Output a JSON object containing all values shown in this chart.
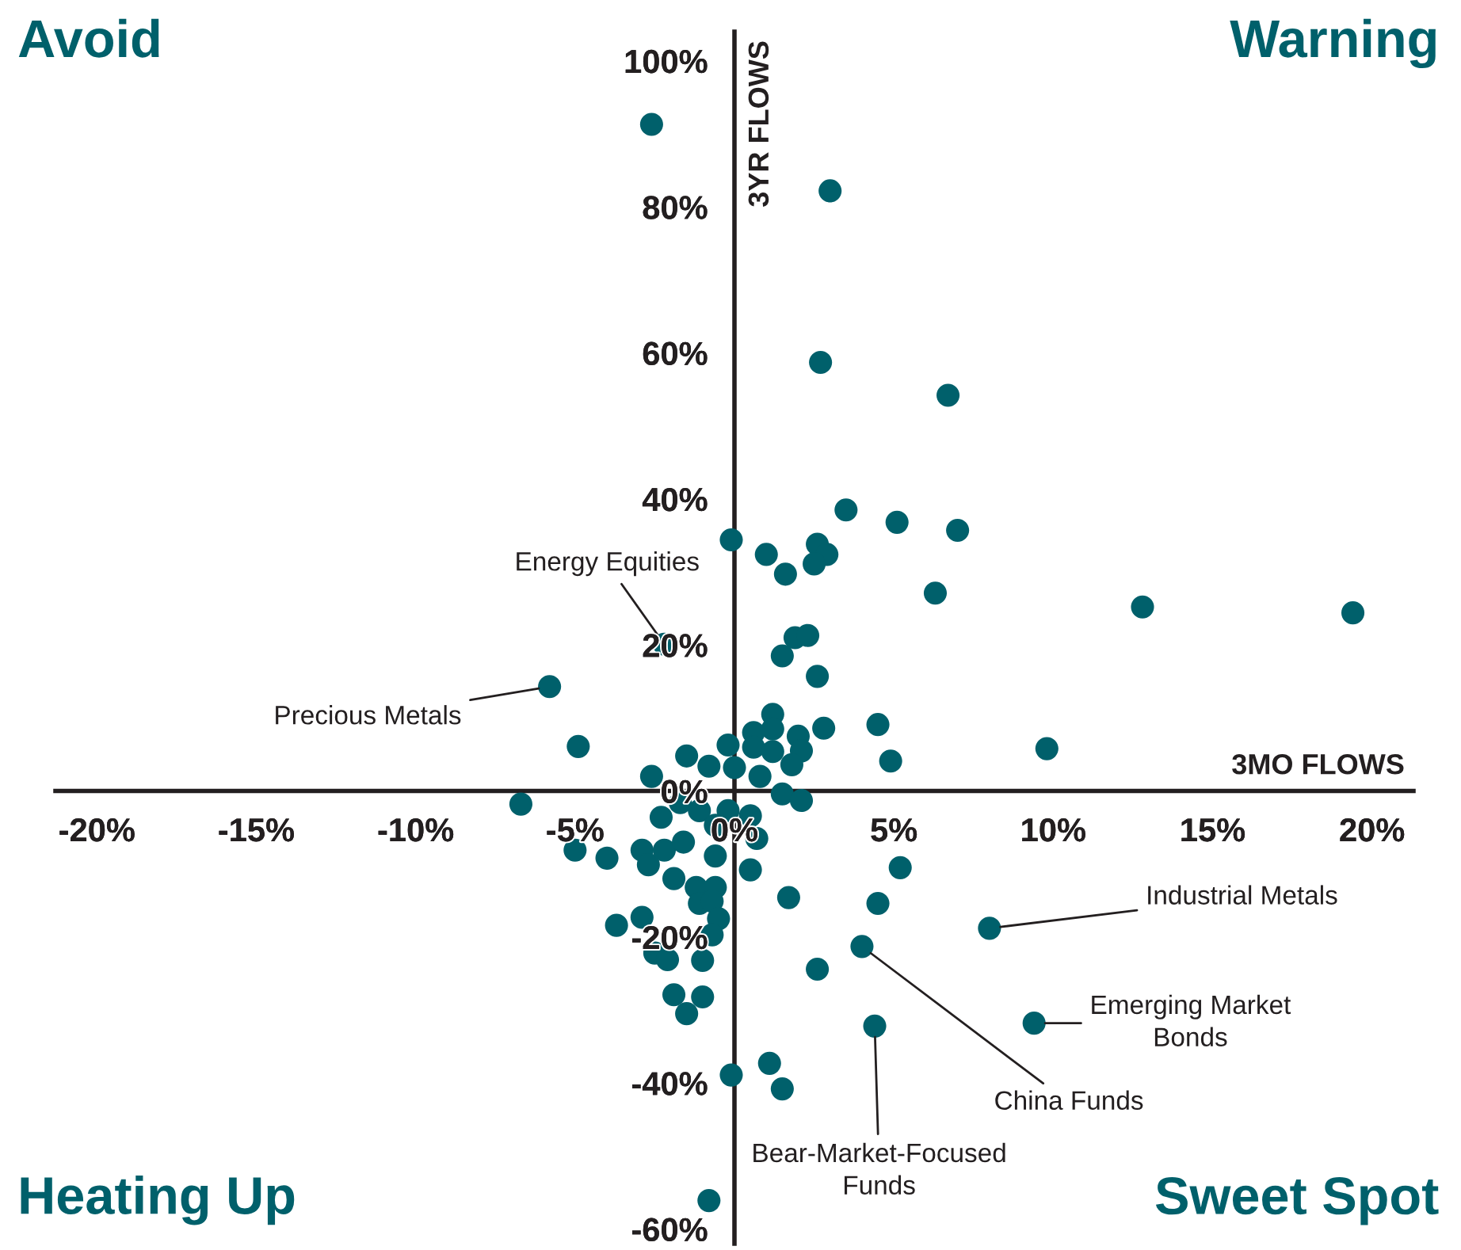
{
  "chart_data": {
    "type": "scatter",
    "xlabel": "3MO FLOWS",
    "ylabel": "3YR FLOWS",
    "xlim": [
      -21.3,
      21.3
    ],
    "ylim": [
      -62,
      104
    ],
    "xticks": [
      {
        "value": -20,
        "label": "-20%"
      },
      {
        "value": -15,
        "label": "-15%"
      },
      {
        "value": -10,
        "label": "-10%"
      },
      {
        "value": -5,
        "label": "-5%"
      },
      {
        "value": 0,
        "label": "0%"
      },
      {
        "value": 5,
        "label": "5%"
      },
      {
        "value": 10,
        "label": "10%"
      },
      {
        "value": 15,
        "label": "15%"
      },
      {
        "value": 20,
        "label": "20%"
      }
    ],
    "yticks": [
      {
        "value": -60,
        "label": "-60%"
      },
      {
        "value": -40,
        "label": "-40%"
      },
      {
        "value": -20,
        "label": "-20%"
      },
      {
        "value": 0,
        "label": "0%"
      },
      {
        "value": 20,
        "label": "20%"
      },
      {
        "value": 40,
        "label": "40%"
      },
      {
        "value": 60,
        "label": "60%"
      },
      {
        "value": 80,
        "label": "80%"
      },
      {
        "value": 100,
        "label": "100%"
      }
    ],
    "grid": false,
    "legend": false,
    "marker": "circle",
    "series": [
      {
        "color": "#00606b",
        "x": [
          3.5,
          5.1,
          7.0,
          -0.1,
          1.0,
          2.6,
          2.9,
          2.5,
          1.6,
          6.3,
          1.9,
          2.3,
          1.5,
          2.6,
          -2.2,
          -5.8,
          1.2,
          1.2,
          0.6,
          2.0,
          2.8,
          4.5,
          4.9,
          -4.9,
          -1.5,
          -0.2,
          0.6,
          1.2,
          2.1,
          1.8,
          -0.8,
          0.0,
          0.8,
          -2.6,
          1.5,
          2.1,
          -6.7,
          -1.7,
          -1.1,
          -0.2,
          0.5,
          -2.3,
          -0.6,
          0.7,
          -5.0,
          -4.0,
          -2.9,
          -2.7,
          -2.2,
          -1.6,
          -0.6,
          0.5,
          5.2,
          -1.9,
          -1.2,
          -0.6,
          1.7,
          -1.1,
          -0.7,
          -0.5,
          -0.7,
          -2.9,
          -3.7,
          -2.5,
          -2.1,
          -1.0,
          -1.9,
          -1.0,
          -1.5,
          -0.1,
          1.1,
          1.5,
          -0.8,
          2.6,
          4.0,
          4.5,
          4.4,
          8.0,
          9.4,
          12.8,
          19.4,
          9.8,
          -2.6,
          3.0,
          2.7,
          6.7
        ],
        "values": [
          38.5,
          36.8,
          35.7,
          34.4,
          32.4,
          33.8,
          32.4,
          31.1,
          29.7,
          27.1,
          21.0,
          21.3,
          18.5,
          15.7,
          20.1,
          14.3,
          10.5,
          8.5,
          8.0,
          7.5,
          8.6,
          9.1,
          4.1,
          6.1,
          4.8,
          6.3,
          6.0,
          5.4,
          5.5,
          3.6,
          3.4,
          3.2,
          2.0,
          2.0,
          -0.4,
          -1.3,
          -1.8,
          -1.6,
          -2.7,
          -2.7,
          -3.4,
          -3.6,
          -4.7,
          -6.5,
          -8.1,
          -9.2,
          -8.1,
          -10.1,
          -8.1,
          -7.0,
          -8.9,
          -10.8,
          -10.5,
          -12.0,
          -13.2,
          -13.2,
          -14.6,
          -15.4,
          -15.1,
          -17.5,
          -19.7,
          -17.3,
          -18.4,
          -22.2,
          -23.1,
          -23.2,
          -27.9,
          -28.2,
          -30.5,
          -38.9,
          -37.3,
          -40.8,
          -56.1,
          -24.4,
          -21.3,
          -15.4,
          -32.2,
          -18.8,
          -31.8,
          25.2,
          24.4,
          5.8,
          91.3,
          82.2,
          58.7,
          54.2
        ]
      }
    ],
    "annotations": [
      {
        "text": "Energy Equities",
        "x": -2.2,
        "y": 20.1
      },
      {
        "text": "Precious Metals",
        "x": -5.8,
        "y": 14.3
      },
      {
        "text": "Industrial Metals",
        "x": 8.0,
        "y": -18.8
      },
      {
        "text": "Emerging Market\nBonds",
        "x": 9.4,
        "y": -31.8
      },
      {
        "text": "China Funds",
        "x": 4.0,
        "y": -21.3
      },
      {
        "text": "Bear-Market-Focused\nFunds",
        "x": 4.4,
        "y": -32.2
      },
      "Avoid",
      "Warning",
      "Heating Up",
      "Sweet Spot"
    ]
  }
}
